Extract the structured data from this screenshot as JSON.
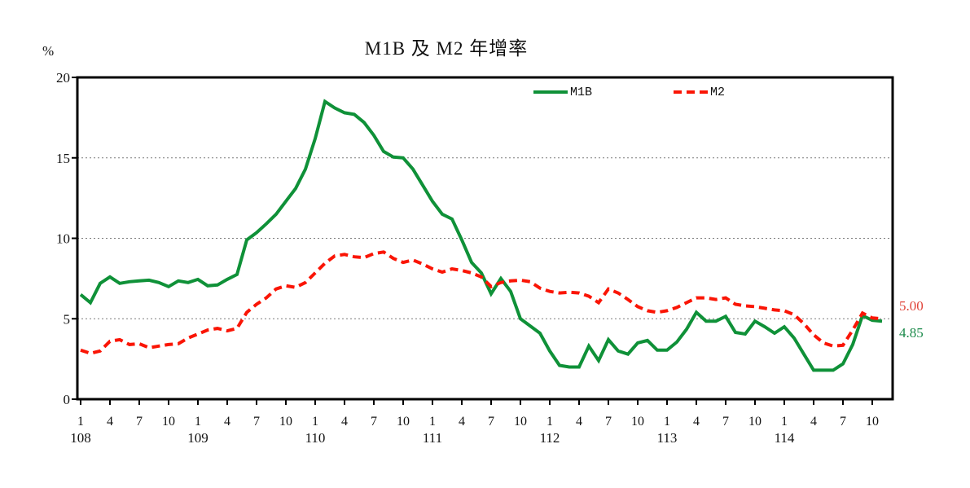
{
  "title": "M1B 及 M2 年增率",
  "y_axis": {
    "unit": "%",
    "ticks": [
      0,
      5,
      10,
      15,
      20
    ],
    "gridlines": [
      5,
      10,
      15
    ],
    "min": 0,
    "max": 20
  },
  "x_axis": {
    "month_tick_labels": [
      "1",
      "4",
      "7",
      "10"
    ],
    "years": [
      "108",
      "109",
      "110",
      "111",
      "112",
      "113",
      "114"
    ],
    "tick_interval_months": 3,
    "last_labeled_tick": "114/10"
  },
  "legend": [
    {
      "label": "M1B",
      "color": "#0f9138",
      "style": "solid"
    },
    {
      "label": "M2",
      "color": "#fa1505",
      "style": "dashed"
    }
  ],
  "annotations": [
    {
      "text": "5.00",
      "series": "M2",
      "color": "#e04338"
    },
    {
      "text": "4.85",
      "series": "M1B",
      "color": "#1b8a4a"
    }
  ],
  "chart_data": {
    "type": "line",
    "title": "M1B 及 M2 年增率",
    "ylabel": "%",
    "ylim": [
      0,
      20
    ],
    "grid": "horizontal-dotted",
    "legend_position": "top-inside",
    "x_start": "108/1",
    "x_end": "114/11",
    "x_unit": "month (ROC year/month)",
    "series": [
      {
        "name": "M1B",
        "color": "#0f9138",
        "dash": false,
        "values": [
          6.5,
          6.0,
          7.2,
          7.6,
          7.2,
          7.3,
          7.35,
          7.4,
          7.25,
          7.0,
          7.35,
          7.25,
          7.45,
          7.05,
          7.1,
          7.45,
          7.75,
          9.9,
          10.35,
          10.9,
          11.5,
          12.3,
          13.1,
          14.3,
          16.2,
          18.5,
          18.1,
          17.8,
          17.7,
          17.2,
          16.4,
          15.4,
          15.05,
          15.0,
          14.3,
          13.3,
          12.3,
          11.5,
          11.2,
          9.9,
          8.5,
          7.85,
          6.55,
          7.5,
          6.7,
          5.0,
          4.55,
          4.1,
          3.0,
          2.1,
          2.0,
          2.0,
          3.3,
          2.4,
          3.7,
          3.0,
          2.8,
          3.5,
          3.65,
          3.05,
          3.05,
          3.55,
          4.35,
          5.4,
          4.85,
          4.85,
          5.15,
          4.15,
          4.05,
          4.85,
          4.5,
          4.1,
          4.5,
          3.8,
          2.8,
          1.8,
          1.8,
          1.8,
          2.2,
          3.4,
          5.2,
          4.9,
          4.85
        ]
      },
      {
        "name": "M2",
        "color": "#fa1505",
        "dash": true,
        "values": [
          3.05,
          2.85,
          3.0,
          3.6,
          3.7,
          3.4,
          3.45,
          3.2,
          3.3,
          3.4,
          3.45,
          3.8,
          4.05,
          4.3,
          4.4,
          4.25,
          4.4,
          5.4,
          5.9,
          6.3,
          6.85,
          7.05,
          6.95,
          7.25,
          7.85,
          8.45,
          8.9,
          9.0,
          8.85,
          8.8,
          9.05,
          9.15,
          8.75,
          8.5,
          8.65,
          8.4,
          8.1,
          7.9,
          8.1,
          8.0,
          7.85,
          7.6,
          7.0,
          7.25,
          7.35,
          7.4,
          7.3,
          6.9,
          6.7,
          6.6,
          6.65,
          6.6,
          6.4,
          6.0,
          6.85,
          6.6,
          6.2,
          5.75,
          5.5,
          5.4,
          5.5,
          5.7,
          6.0,
          6.3,
          6.3,
          6.2,
          6.3,
          5.9,
          5.8,
          5.75,
          5.65,
          5.55,
          5.5,
          5.25,
          4.7,
          4.0,
          3.5,
          3.3,
          3.35,
          4.3,
          5.35,
          5.05,
          5.0
        ]
      }
    ],
    "end_labels": {
      "M2": "5.00",
      "M1B": "4.85"
    }
  }
}
